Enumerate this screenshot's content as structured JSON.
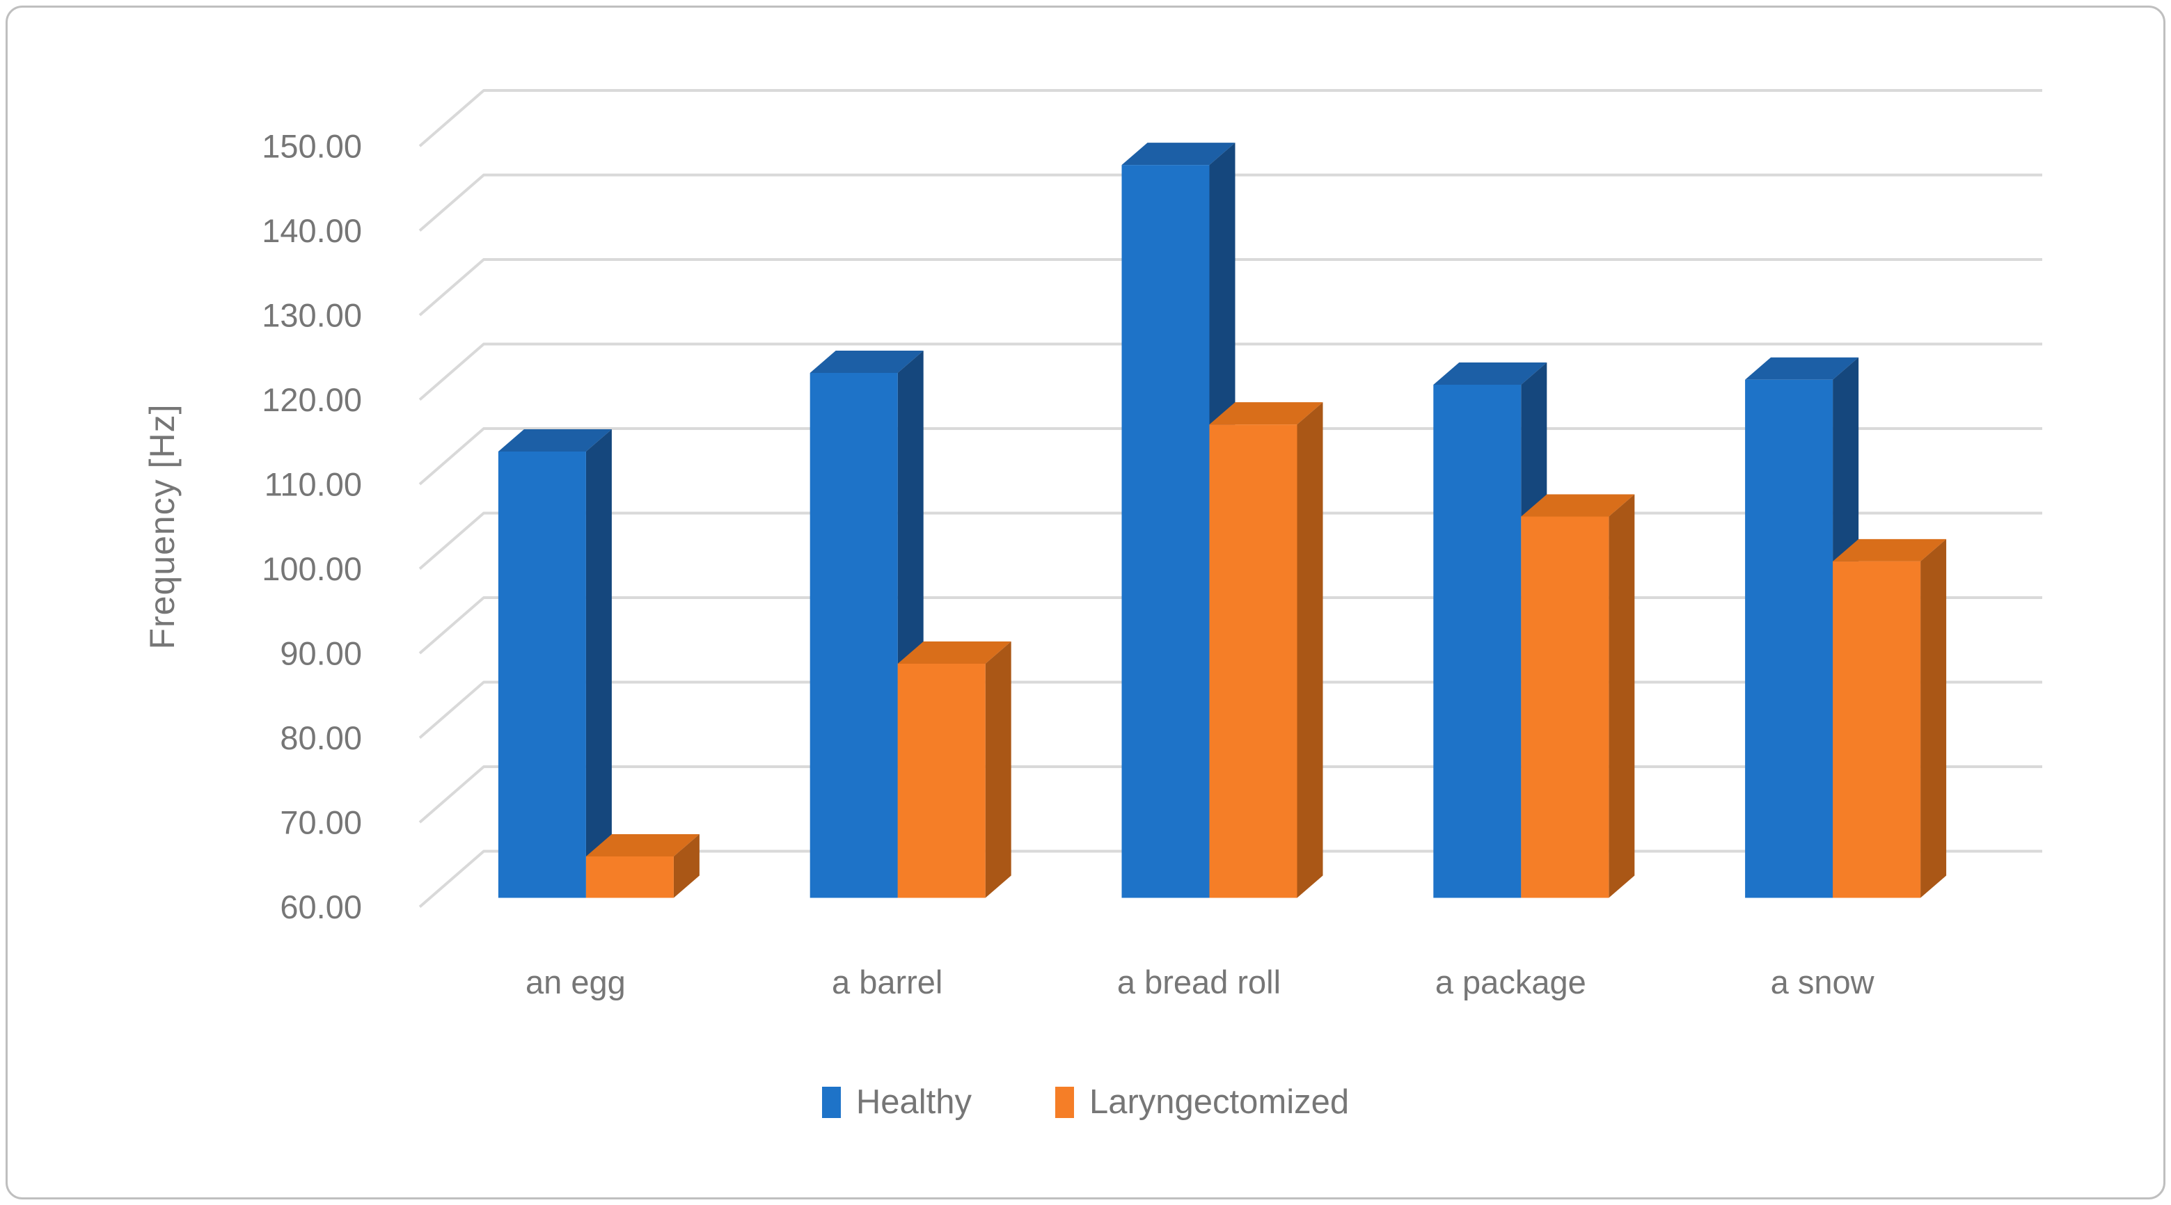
{
  "figure": {
    "background": "#FFFFFF",
    "border_color": "#BFBFBF"
  },
  "chart_data": {
    "type": "bar",
    "style": "3d-clustered-column",
    "title": "",
    "xlabel": "",
    "ylabel": "Frequency [Hz]",
    "categories": [
      "an egg",
      "a barrel",
      "a bread roll",
      "a package",
      "a snow"
    ],
    "series": [
      {
        "name": "Healthy",
        "values": [
          112.8,
          122.1,
          146.7,
          120.7,
          121.3
        ],
        "color": "#1E73C8",
        "color_top": "#1C5FA6",
        "color_side": "#15477D"
      },
      {
        "name": "Laryngectomized",
        "values": [
          64.9,
          87.7,
          116.0,
          105.1,
          99.8
        ],
        "color": "#F57E27",
        "color_top": "#D96E1A",
        "color_side": "#AA5716"
      }
    ],
    "ylim": [
      60,
      150
    ],
    "y_step": 10,
    "y_tick_format": "0.00",
    "y_tick_labels": [
      "60.00",
      "70.00",
      "80.00",
      "90.00",
      "100.00",
      "110.00",
      "120.00",
      "130.00",
      "140.00",
      "150.00"
    ],
    "grid": true,
    "gridline_color": "#D9D9D9",
    "text_color": "#767676",
    "legend_position": "bottom"
  }
}
